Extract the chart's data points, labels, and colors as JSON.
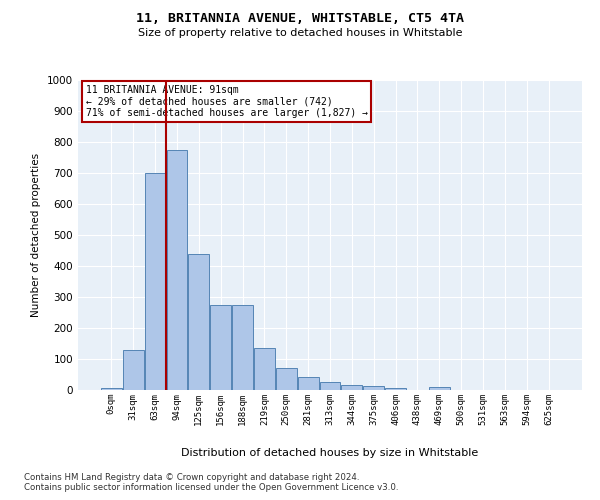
{
  "title": "11, BRITANNIA AVENUE, WHITSTABLE, CT5 4TA",
  "subtitle": "Size of property relative to detached houses in Whitstable",
  "xlabel": "Distribution of detached houses by size in Whitstable",
  "ylabel": "Number of detached properties",
  "bar_labels": [
    "0sqm",
    "31sqm",
    "63sqm",
    "94sqm",
    "125sqm",
    "156sqm",
    "188sqm",
    "219sqm",
    "250sqm",
    "281sqm",
    "313sqm",
    "344sqm",
    "375sqm",
    "406sqm",
    "438sqm",
    "469sqm",
    "500sqm",
    "531sqm",
    "563sqm",
    "594sqm",
    "625sqm"
  ],
  "bar_values": [
    8,
    128,
    700,
    775,
    440,
    275,
    275,
    135,
    70,
    42,
    27,
    15,
    12,
    8,
    0,
    10,
    0,
    0,
    0,
    0,
    0
  ],
  "bar_color": "#aec6e8",
  "bar_edge_color": "#5585b5",
  "vline_color": "#aa0000",
  "annotation_text": "11 BRITANNIA AVENUE: 91sqm\n← 29% of detached houses are smaller (742)\n71% of semi-detached houses are larger (1,827) →",
  "annotation_box_color": "#ffffff",
  "annotation_box_edge": "#aa0000",
  "ylim": [
    0,
    1000
  ],
  "yticks": [
    0,
    100,
    200,
    300,
    400,
    500,
    600,
    700,
    800,
    900,
    1000
  ],
  "bg_color": "#e8f0f8",
  "footer1": "Contains HM Land Registry data © Crown copyright and database right 2024.",
  "footer2": "Contains public sector information licensed under the Open Government Licence v3.0."
}
